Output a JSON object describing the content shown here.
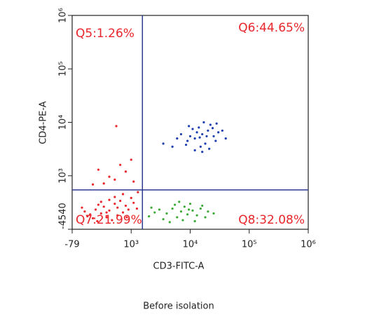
{
  "chart_data": {
    "type": "scatter",
    "xlabel": "CD3-FITC-A",
    "ylabel": "CD4-PE-A",
    "caption": "Before isolation",
    "xscale": "biex",
    "yscale": "biex",
    "xlinthresh": 1000,
    "ylinthresh": 1000,
    "xlim": [
      -79,
      1000000
    ],
    "ylim": [
      -4540,
      1000000
    ],
    "xticks": [
      -79,
      {
        "value": 1000,
        "label": "10³"
      },
      {
        "value": 10000,
        "label": "10⁴"
      },
      {
        "value": 100000,
        "label": "10⁵"
      },
      {
        "value": 1000000,
        "label": "10⁶"
      }
    ],
    "yticks": [
      -4540,
      {
        "value": 1000,
        "label": "10³"
      },
      {
        "value": 10000,
        "label": "10⁴"
      },
      {
        "value": 100000,
        "label": "10⁵"
      },
      {
        "value": 1000000,
        "label": "10⁶"
      }
    ],
    "gates": {
      "x": 1550,
      "y": -458,
      "color": "#2b3990"
    },
    "annotations": [
      "Q5:1.26%",
      "Q6:44.65%",
      "Q7:21.99%",
      "Q8:32.08%"
    ],
    "annotation_color": "#e8262b",
    "series": [
      {
        "color": "#1f3fae",
        "x": [
          16000,
          12000,
          20000,
          9000,
          25000,
          14000,
          18000,
          30000,
          7000,
          11000,
          22000,
          15000,
          8500,
          27000,
          13000,
          19000,
          10000,
          24000,
          17000,
          6000,
          35000,
          5000,
          40000,
          12000,
          21000,
          9500,
          3500,
          28000,
          16000,
          14500
        ],
        "y": [
          6000,
          5000,
          7000,
          4500,
          5500,
          8000,
          4000,
          6500,
          6000,
          7500,
          9000,
          3500,
          3800,
          4500,
          6500,
          5500,
          5500,
          7800,
          10000,
          5000,
          7000,
          3500,
          5000,
          3000,
          3200,
          8500,
          4000,
          9500,
          2800,
          5200
        ]
      },
      {
        "color": "#3aaa35",
        "x": [
          7000,
          5000,
          9000,
          4000,
          11000,
          6000,
          8000,
          3000,
          13000,
          2500,
          15000,
          7500,
          10000,
          5500,
          2200,
          18000,
          3500,
          20000,
          12000,
          6500,
          4500,
          9500,
          2000,
          25000,
          16000
        ],
        "y": [
          -2700,
          -2400,
          -3000,
          -2900,
          -2600,
          -3300,
          -2200,
          -2500,
          -3100,
          -2800,
          -2400,
          -3600,
          -1900,
          -2000,
          -2300,
          -3300,
          -3500,
          -2700,
          -3700,
          -1700,
          -3800,
          -2500,
          -3200,
          -2900,
          -2100
        ]
      },
      {
        "color": "#e8262b",
        "x": [
          600,
          450,
          750,
          350,
          850,
          550,
          700,
          250,
          900,
          400,
          650,
          300,
          800,
          500,
          150,
          950,
          1100,
          1250,
          200,
          700,
          850,
          600,
          1000,
          450,
          100,
          1300,
          550,
          750,
          380,
          920,
          500,
          700,
          900,
          300,
          800,
          1100,
          600,
          728,
          400,
          1000
        ],
        "y": [
          -2600,
          -2900,
          -2300,
          -2500,
          -2800,
          -3300,
          -1900,
          -3000,
          -2100,
          -2000,
          -3600,
          -3400,
          -1600,
          -2200,
          -2700,
          -2500,
          -1800,
          -2400,
          -3200,
          -1200,
          -900,
          -1500,
          -1300,
          -1700,
          -2300,
          -700,
          -2800,
          -3100,
          -3700,
          -3300,
          200,
          600,
          1200,
          100,
          1600,
          400,
          900,
          8500,
          1300,
          2000
        ]
      }
    ]
  }
}
